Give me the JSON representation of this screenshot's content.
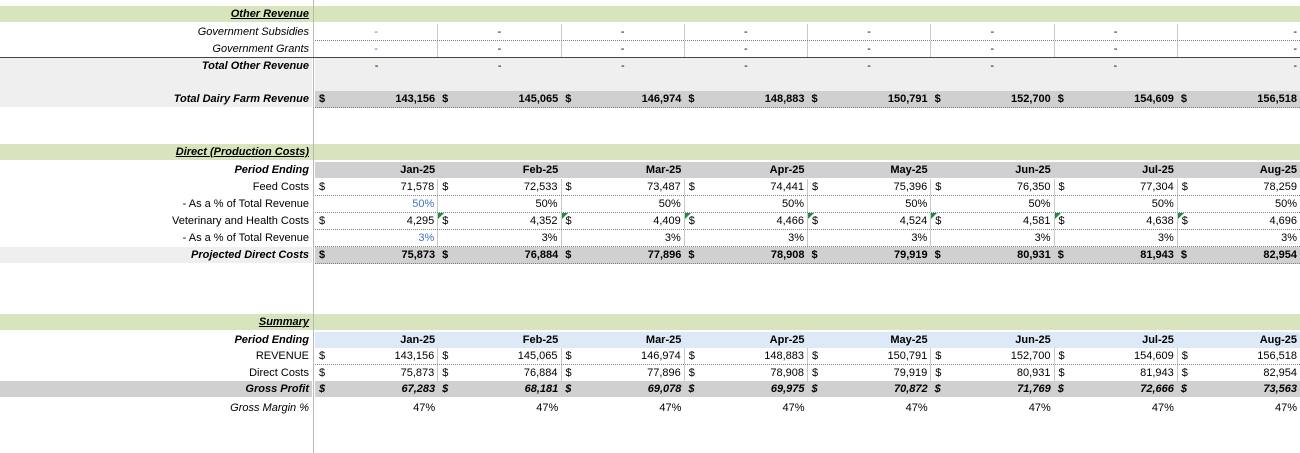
{
  "months": [
    "Jan-25",
    "Feb-25",
    "Mar-25",
    "Apr-25",
    "May-25",
    "Jun-25",
    "Jul-25",
    "Aug-25"
  ],
  "currency": "$",
  "other_revenue": {
    "header": "Other Revenue",
    "government_subsidies": {
      "label": "Government Subsidies",
      "values": [
        "-",
        "-",
        "-",
        "-",
        "-",
        "-",
        "-",
        "-"
      ]
    },
    "government_grants": {
      "label": "Government Grants",
      "values": [
        "-",
        "-",
        "-",
        "-",
        "-",
        "-",
        "-",
        "-"
      ]
    },
    "total_other_revenue": {
      "label": "Total Other Revenue",
      "values": [
        "-",
        "-",
        "-",
        "-",
        "-",
        "-",
        "-",
        "-"
      ]
    }
  },
  "total_dairy_farm_revenue": {
    "label": "Total Dairy Farm Revenue",
    "values": [
      "143,156",
      "145,065",
      "146,974",
      "148,883",
      "150,791",
      "152,700",
      "154,609",
      "156,518"
    ]
  },
  "direct_costs": {
    "header": "Direct (Production Costs)",
    "period_label": "Period Ending",
    "feed_costs": {
      "label": "Feed Costs",
      "values": [
        "71,578",
        "72,533",
        "73,487",
        "74,441",
        "75,396",
        "76,350",
        "77,304",
        "78,259"
      ]
    },
    "feed_pct": {
      "label": "- As a % of Total Revenue",
      "values": [
        "50%",
        "50%",
        "50%",
        "50%",
        "50%",
        "50%",
        "50%",
        "50%"
      ]
    },
    "vet_costs": {
      "label": "Veterinary and Health Costs",
      "values": [
        "4,295",
        "4,352",
        "4,409",
        "4,466",
        "4,524",
        "4,581",
        "4,638",
        "4,696"
      ]
    },
    "vet_pct": {
      "label": "- As a % of Total Revenue",
      "values": [
        "3%",
        "3%",
        "3%",
        "3%",
        "3%",
        "3%",
        "3%",
        "3%"
      ]
    },
    "projected": {
      "label": "Projected Direct Costs",
      "values": [
        "75,873",
        "76,884",
        "77,896",
        "78,908",
        "79,919",
        "80,931",
        "81,943",
        "82,954"
      ]
    }
  },
  "summary": {
    "header": "Summary",
    "period_label": "Period Ending",
    "revenue": {
      "label": "REVENUE",
      "values": [
        "143,156",
        "145,065",
        "146,974",
        "148,883",
        "150,791",
        "152,700",
        "154,609",
        "156,518"
      ]
    },
    "direct": {
      "label": "Direct Costs",
      "values": [
        "75,873",
        "76,884",
        "77,896",
        "78,908",
        "79,919",
        "80,931",
        "81,943",
        "82,954"
      ]
    },
    "gross_profit": {
      "label": "Gross Profit",
      "values": [
        "67,283",
        "68,181",
        "69,078",
        "69,975",
        "70,872",
        "71,769",
        "72,666",
        "73,563"
      ]
    },
    "gross_margin": {
      "label": "Gross Margin %",
      "values": [
        "47%",
        "47%",
        "47%",
        "47%",
        "47%",
        "47%",
        "47%",
        "47%"
      ]
    }
  }
}
